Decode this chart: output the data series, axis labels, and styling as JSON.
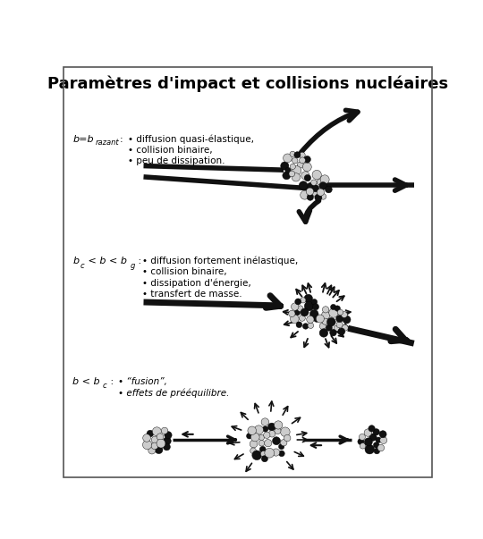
{
  "title": "Paramètres d'impact et collisions nucléaires",
  "title_fontsize": 13,
  "bg": "#ffffff",
  "border_color": "#555555",
  "sec1_label": "b=b",
  "sec1_sub": "razant",
  "sec1_bullets": [
    "diffusion quasi-élastique,",
    "collision binaire,",
    "peu de dissipation."
  ],
  "sec2_label1": "b",
  "sec2_sub1": "c",
  "sec2_label2": " < b < b",
  "sec2_sub2": "g",
  "sec2_bullets": [
    "diffusion fortement inélastique,",
    "collision binaire,",
    "dissipation d'énergie,",
    "transfert de masse."
  ],
  "sec3_label": "b < b",
  "sec3_sub": "c",
  "sec3_bullets": [
    "• “fusion”,",
    "• effets de prééquilibre."
  ],
  "dark_color": "#111111",
  "light_color": "#cccccc",
  "mid_color": "#888888"
}
